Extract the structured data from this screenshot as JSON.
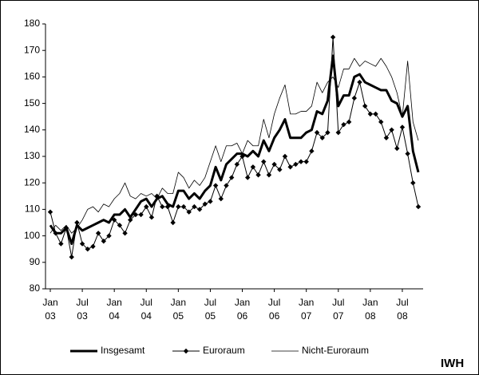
{
  "chart_data": {
    "type": "line",
    "categories": [
      "Jan 03",
      null,
      null,
      null,
      null,
      null,
      "Jul 03",
      null,
      null,
      null,
      null,
      null,
      "Jan 04",
      null,
      null,
      null,
      null,
      null,
      "Jul 04",
      null,
      null,
      null,
      null,
      null,
      "Jan 05",
      null,
      null,
      null,
      null,
      null,
      "Jul 05",
      null,
      null,
      null,
      null,
      null,
      "Jan 06",
      null,
      null,
      null,
      null,
      null,
      "Jul 06",
      null,
      null,
      null,
      null,
      null,
      "Jan 07",
      null,
      null,
      null,
      null,
      null,
      "Jul 07",
      null,
      null,
      null,
      null,
      null,
      "Jan 08",
      null,
      null,
      null,
      null,
      null,
      "Jul 08",
      null,
      null,
      null
    ],
    "ylim": [
      80,
      180
    ],
    "yticks": [
      80,
      90,
      100,
      110,
      120,
      130,
      140,
      150,
      160,
      170,
      180
    ],
    "grid": false,
    "legend": "bottom",
    "series": [
      {
        "name": "Insgesamt",
        "color": "#000000",
        "line_width": 3,
        "values": [
          104,
          101,
          101,
          103,
          97,
          104,
          102,
          103,
          104,
          105,
          106,
          105,
          108,
          108,
          110,
          107,
          110,
          113,
          114,
          111,
          114,
          115,
          112,
          111,
          117,
          117,
          114,
          116,
          114,
          117,
          119,
          126,
          121,
          127,
          129,
          131,
          131,
          130,
          132,
          130,
          136,
          132,
          137,
          140,
          144,
          137,
          137,
          137,
          139,
          140,
          147,
          146,
          151,
          168,
          149,
          153,
          153,
          160,
          161,
          158,
          157,
          156,
          155,
          155,
          151,
          150,
          145,
          149,
          132,
          124
        ]
      },
      {
        "name": "Euroraum",
        "color": "#000000",
        "line_width": 1,
        "marker": "diamond",
        "values": [
          109,
          101,
          97,
          103,
          92,
          105,
          97,
          95,
          96,
          101,
          98,
          100,
          106,
          104,
          101,
          106,
          108,
          108,
          111,
          107,
          115,
          111,
          111,
          105,
          111,
          111,
          109,
          111,
          110,
          112,
          113,
          119,
          114,
          119,
          122,
          127,
          130,
          122,
          126,
          123,
          128,
          123,
          127,
          125,
          130,
          126,
          127,
          128,
          128,
          132,
          139,
          137,
          139,
          175,
          139,
          142,
          143,
          152,
          158,
          149,
          146,
          146,
          143,
          137,
          140,
          133,
          141,
          131,
          120,
          111
        ]
      },
      {
        "name": "Nicht-Euroraum",
        "color": "#000000",
        "line_width": 0.8,
        "values": [
          101,
          104,
          102,
          104,
          101,
          103,
          106,
          110,
          111,
          109,
          112,
          111,
          114,
          116,
          120,
          115,
          114,
          116,
          115,
          116,
          114,
          118,
          116,
          116,
          124,
          122,
          118,
          121,
          119,
          122,
          128,
          134,
          128,
          134,
          134,
          135,
          131,
          136,
          134,
          134,
          144,
          137,
          146,
          152,
          157,
          146,
          146,
          147,
          147,
          149,
          158,
          154,
          158,
          160,
          156,
          163,
          163,
          167,
          164,
          166,
          165,
          164,
          167,
          164,
          160,
          154,
          145,
          166,
          143,
          136
        ]
      }
    ],
    "source": "IWH"
  }
}
